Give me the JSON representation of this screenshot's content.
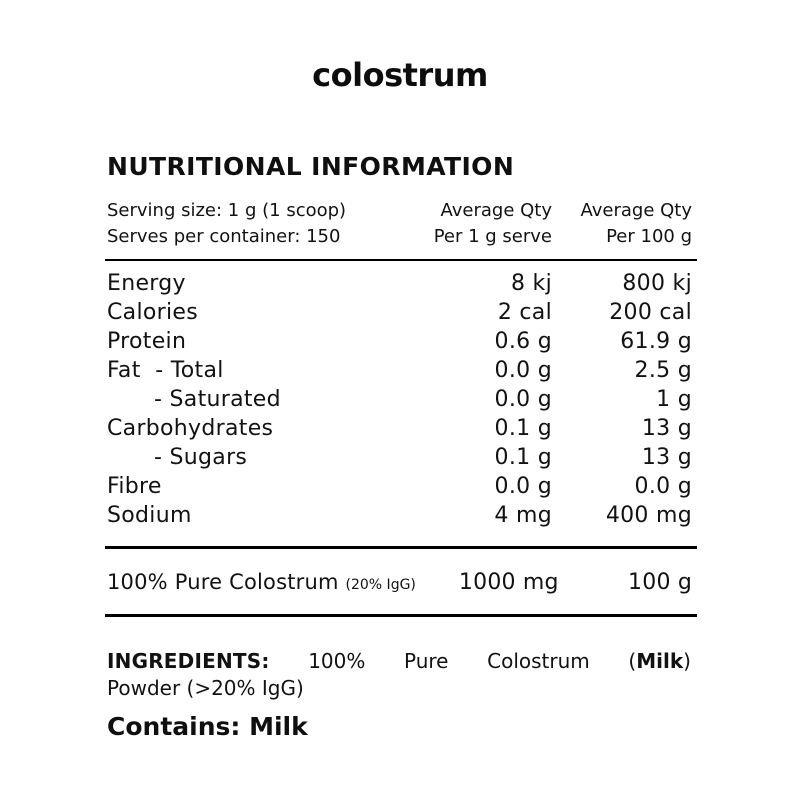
{
  "brand": {
    "logo_text": "colostrum"
  },
  "panel": {
    "title": "NUTRITIONAL INFORMATION",
    "serving_line1": "Serving size: 1 g (1 scoop)",
    "serving_line2": "Serves per container: 150",
    "columns": [
      {
        "line1": "Average Qty",
        "line2": "Per 1 g serve"
      },
      {
        "line1": "Average Qty",
        "line2": "Per 100 g"
      }
    ],
    "rows": [
      {
        "label": "Energy",
        "per_serve": "8 kj",
        "per_100g": "800 kj"
      },
      {
        "label": "Calories",
        "per_serve": "2 cal",
        "per_100g": "200 cal"
      },
      {
        "label": "Protein",
        "per_serve": "0.6 g",
        "per_100g": "61.9 g"
      },
      {
        "label": "Fat  - Total",
        "per_serve": "0.0 g",
        "per_100g": "2.5 g"
      },
      {
        "label": "- Saturated",
        "per_serve": "0.0 g",
        "per_100g": "1 g"
      },
      {
        "label": "Carbohydrates",
        "per_serve": "0.1 g",
        "per_100g": "13 g"
      },
      {
        "label": "- Sugars",
        "per_serve": "0.1 g",
        "per_100g": "13 g"
      },
      {
        "label": "Fibre",
        "per_serve": "0.0 g",
        "per_100g": "0.0 g"
      },
      {
        "label": "Sodium",
        "per_serve": "4 mg",
        "per_100g": "400 mg"
      }
    ],
    "highlight_row": {
      "label": "100% Pure Colostrum ",
      "note": "(20% IgG)",
      "per_serve": "1000 mg",
      "per_100g": "100 g"
    }
  },
  "ingredients": {
    "heading": "INGREDIENTS:",
    "words": [
      "100%",
      "Pure",
      "Colostrum"
    ],
    "allergen_prefix": "(",
    "allergen": "Milk",
    "allergen_suffix": ")",
    "line2": "Powder (>20% IgG)"
  },
  "contains_text": "Contains: Milk",
  "colors": {
    "text": "#121212",
    "rule": "#000000",
    "background": "#ffffff"
  }
}
